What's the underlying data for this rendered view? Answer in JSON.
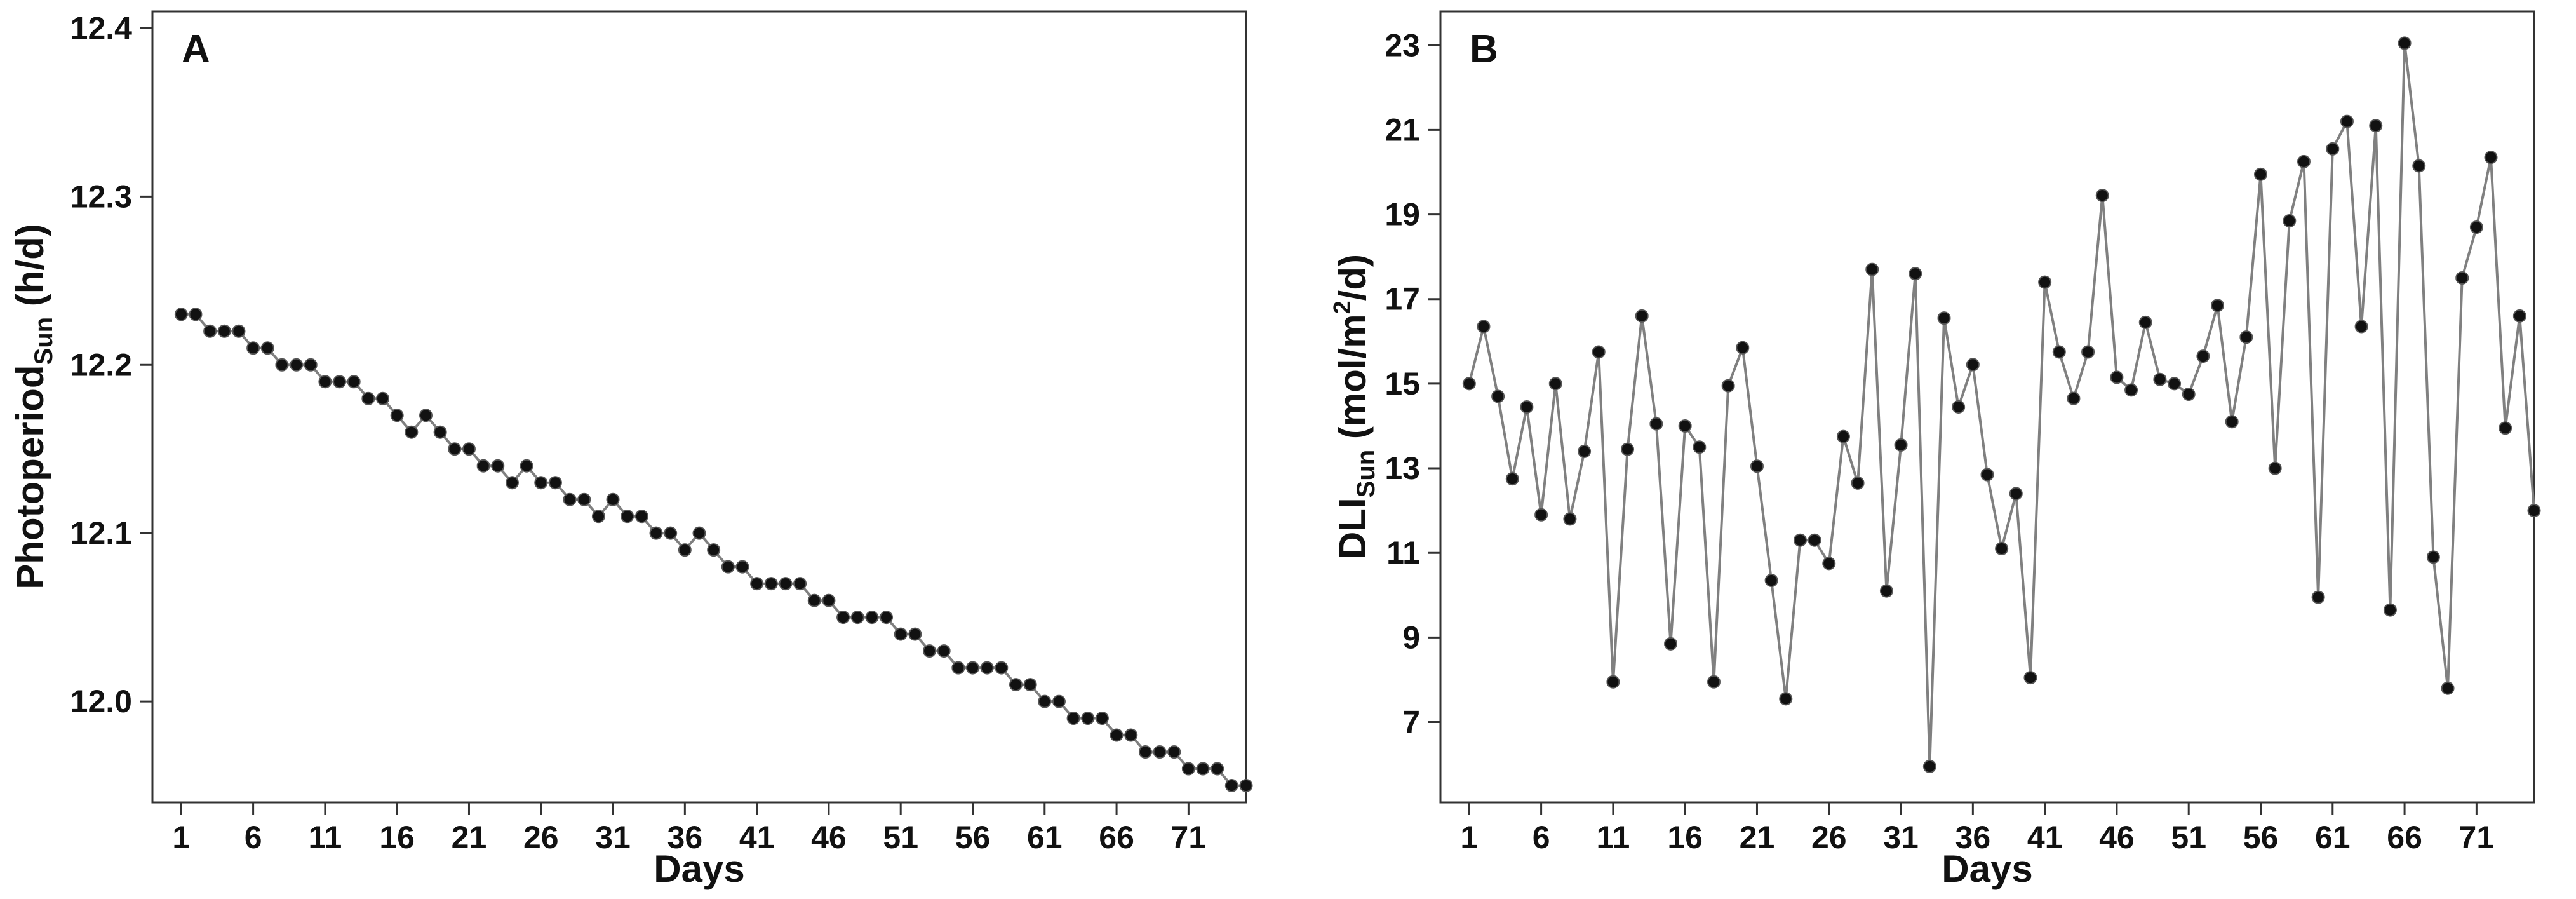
{
  "chart_data": [
    {
      "type": "line",
      "panel": "A",
      "xlabel": "Days",
      "ylabel": {
        "main": "Photoperiod",
        "sub": "Sun",
        "unit": " (h/d)"
      },
      "xlim": [
        -1,
        75
      ],
      "ylim": [
        11.94,
        12.41
      ],
      "xticks": [
        1,
        6,
        11,
        16,
        21,
        26,
        31,
        36,
        41,
        46,
        51,
        56,
        61,
        66,
        71
      ],
      "yticks": [
        12.0,
        12.1,
        12.2,
        12.3,
        12.4
      ],
      "ytick_labels": [
        "12.0",
        "12.1",
        "12.2",
        "12.3",
        "12.4"
      ],
      "grid": false,
      "marker_color": "#111111",
      "line_color": "#808080",
      "series": [
        {
          "x": [
            1,
            2,
            3,
            4,
            5,
            6,
            7,
            8,
            9,
            10,
            11,
            12,
            13,
            14,
            15,
            16,
            17,
            18,
            19,
            20,
            21,
            22,
            23,
            24,
            25,
            26,
            27,
            28,
            29,
            30,
            31,
            32,
            33,
            34,
            35,
            36,
            37,
            38,
            39,
            40,
            41,
            42,
            43,
            44,
            45,
            46,
            47,
            48,
            49,
            50,
            51,
            52,
            53,
            54,
            55,
            56,
            57,
            58,
            59,
            60,
            61,
            62,
            63,
            64,
            65,
            66,
            67,
            68,
            69,
            70,
            71,
            72,
            73,
            74,
            75
          ],
          "values": [
            12.23,
            12.23,
            12.22,
            12.22,
            12.22,
            12.21,
            12.21,
            12.2,
            12.2,
            12.2,
            12.19,
            12.19,
            12.19,
            12.18,
            12.18,
            12.17,
            12.16,
            12.17,
            12.16,
            12.15,
            12.15,
            12.14,
            12.14,
            12.13,
            12.14,
            12.13,
            12.13,
            12.12,
            12.12,
            12.11,
            12.12,
            12.11,
            12.11,
            12.1,
            12.1,
            12.09,
            12.1,
            12.09,
            12.08,
            12.08,
            12.07,
            12.07,
            12.07,
            12.07,
            12.06,
            12.06,
            12.05,
            12.05,
            12.05,
            12.05,
            12.04,
            12.04,
            12.03,
            12.03,
            12.02,
            12.02,
            12.02,
            12.02,
            12.01,
            12.01,
            12.0,
            12.0,
            11.99,
            11.99,
            11.99,
            11.98,
            11.98,
            11.97,
            11.97,
            11.97,
            11.96,
            11.96,
            11.96,
            11.95,
            11.95
          ]
        }
      ]
    },
    {
      "type": "line",
      "panel": "B",
      "xlabel": "Days",
      "ylabel": {
        "main": "DLI",
        "sub": "Sun",
        "unit": " (mol/m",
        "unit_sup": "2",
        "unit_end": "/d)"
      },
      "xlim": [
        -1,
        75
      ],
      "ylim": [
        5.1,
        23.8
      ],
      "xticks": [
        1,
        6,
        11,
        16,
        21,
        26,
        31,
        36,
        41,
        46,
        51,
        56,
        61,
        66,
        71
      ],
      "yticks": [
        7,
        9,
        11,
        13,
        15,
        17,
        19,
        21,
        23
      ],
      "ytick_labels": [
        "7",
        "9",
        "11",
        "13",
        "15",
        "17",
        "19",
        "21",
        "23"
      ],
      "grid": false,
      "marker_color": "#111111",
      "line_color": "#808080",
      "series": [
        {
          "x": [
            1,
            2,
            3,
            4,
            5,
            6,
            7,
            8,
            9,
            10,
            11,
            12,
            13,
            14,
            15,
            16,
            17,
            18,
            19,
            20,
            21,
            22,
            23,
            24,
            25,
            26,
            27,
            28,
            29,
            30,
            31,
            32,
            33,
            34,
            35,
            36,
            37,
            38,
            39,
            40,
            41,
            42,
            43,
            44,
            45,
            46,
            47,
            48,
            49,
            50,
            51,
            52,
            53,
            54,
            55,
            56,
            57,
            58,
            59,
            60,
            61,
            62,
            63,
            64,
            65,
            66,
            67,
            68,
            69,
            70,
            71,
            72,
            73,
            74,
            75
          ],
          "values": [
            15.0,
            16.35,
            14.7,
            12.75,
            14.45,
            11.9,
            15.0,
            11.8,
            13.4,
            15.75,
            7.95,
            13.45,
            16.6,
            14.05,
            8.85,
            14.0,
            13.5,
            7.95,
            14.95,
            15.85,
            13.05,
            10.35,
            7.55,
            11.3,
            11.3,
            10.75,
            13.75,
            12.65,
            17.7,
            10.1,
            13.55,
            17.6,
            5.95,
            16.55,
            14.45,
            15.45,
            12.85,
            11.1,
            12.4,
            8.05,
            17.4,
            15.75,
            14.65,
            15.75,
            19.45,
            15.15,
            14.85,
            16.45,
            15.1,
            15.0,
            14.75,
            15.65,
            16.85,
            14.1,
            16.1,
            19.95,
            13.0,
            18.85,
            20.25,
            9.95,
            20.55,
            21.2,
            16.35,
            21.1,
            9.65,
            23.05,
            20.15,
            10.9,
            7.8,
            17.5,
            18.7,
            20.35,
            13.95,
            16.6,
            12.0
          ]
        }
      ]
    }
  ]
}
